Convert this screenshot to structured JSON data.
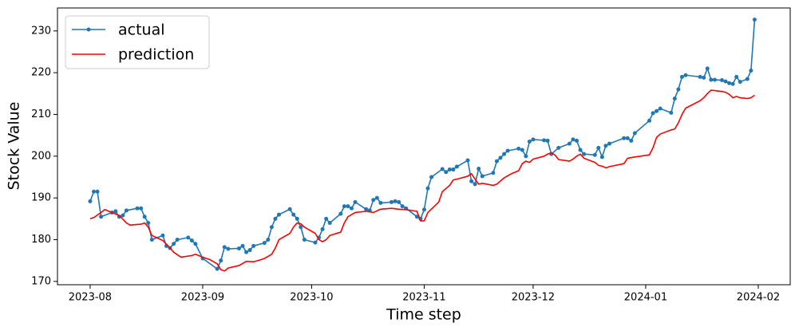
{
  "chart_data": {
    "type": "line",
    "xlabel": "Time step",
    "ylabel": "Stock Value",
    "xlim": [
      -9,
      192.8
    ],
    "ylim": [
      169.2,
      235.5
    ],
    "xticks": [
      {
        "value": 0,
        "label": "2023-08"
      },
      {
        "value": 31,
        "label": "2023-09"
      },
      {
        "value": 61,
        "label": "2023-10"
      },
      {
        "value": 92,
        "label": "2023-11"
      },
      {
        "value": 122,
        "label": "2023-12"
      },
      {
        "value": 153,
        "label": "2024-01"
      },
      {
        "value": 184,
        "label": "2024-02"
      }
    ],
    "yticks": [
      170,
      180,
      190,
      200,
      210,
      220,
      230
    ],
    "legend": "upper left",
    "series": [
      {
        "name": "actual",
        "color": "#1f77b4",
        "markers": true,
        "x": [
          0,
          1,
          2,
          3,
          6,
          7,
          8,
          9,
          10,
          13,
          14,
          15,
          16,
          17,
          20,
          21,
          22,
          23,
          24,
          27,
          28,
          29,
          31,
          35,
          36,
          37,
          38,
          41,
          42,
          43,
          44,
          45,
          48,
          49,
          50,
          51,
          52,
          55,
          56,
          57,
          58,
          59,
          62,
          63,
          64,
          65,
          66,
          69,
          70,
          71,
          72,
          73,
          76,
          77,
          78,
          79,
          80,
          83,
          84,
          85,
          86,
          87,
          90,
          91,
          92,
          93,
          94,
          97,
          98,
          99,
          100,
          101,
          104,
          105,
          106,
          107,
          108,
          111,
          112,
          113,
          114,
          115,
          118,
          119,
          120,
          121,
          122,
          125,
          126,
          127,
          129,
          132,
          133,
          134,
          135,
          136,
          139,
          140,
          141,
          142,
          143,
          147,
          148,
          149,
          150,
          154,
          155,
          156,
          157,
          160,
          161,
          162,
          163,
          164,
          168,
          169,
          170,
          171,
          172,
          174,
          175,
          176,
          177,
          178,
          179,
          181,
          182,
          183
        ],
        "values": [
          189.2,
          191.5,
          191.5,
          185.5,
          186.5,
          186.8,
          185.5,
          185.8,
          187,
          187.5,
          187.5,
          185.5,
          184,
          180,
          181,
          178.5,
          178,
          179,
          180,
          180.5,
          179.8,
          179,
          175.5,
          173,
          175,
          178.2,
          177.8,
          177.9,
          178.5,
          177,
          177.5,
          178.5,
          179.2,
          180,
          183,
          185,
          186,
          187.3,
          186,
          185,
          183,
          180,
          179.3,
          180.5,
          182.5,
          185,
          184,
          186.2,
          188,
          188,
          187.5,
          189,
          187.3,
          187,
          189.5,
          190,
          188.8,
          189,
          189.2,
          189,
          188,
          187.5,
          185.5,
          185,
          187.2,
          192.3,
          195,
          196.9,
          196.2,
          196.8,
          196.8,
          197.5,
          199,
          194,
          193.3,
          197,
          195.2,
          196,
          198.8,
          199.6,
          200.5,
          201.3,
          201.8,
          201.5,
          200,
          203.5,
          204,
          203.8,
          203.7,
          200.5,
          202,
          203,
          204,
          203.7,
          201.5,
          200.5,
          200.3,
          202,
          199.8,
          202.5,
          203,
          204.3,
          204.3,
          203.7,
          205.5,
          208.5,
          210.3,
          210.8,
          211.4,
          210.4,
          213.8,
          216,
          219,
          219.4,
          219,
          218.8,
          221,
          218.3,
          218.3,
          218.2,
          217.9,
          217.5,
          217.3,
          219,
          217.8,
          218.5,
          220.5,
          232.7
        ]
      },
      {
        "name": "prediction",
        "color": "#ff0000",
        "markers": false,
        "x": [
          0,
          1,
          3,
          4,
          6,
          8,
          10,
          11,
          14,
          15,
          16,
          17,
          20,
          22,
          23,
          25,
          28,
          29,
          31,
          33,
          35,
          36,
          37,
          38,
          41,
          43,
          45,
          47,
          48,
          50,
          51,
          52,
          55,
          56,
          57,
          58,
          59,
          62,
          63,
          64,
          65,
          66,
          69,
          70,
          71,
          73,
          76,
          78,
          80,
          83,
          85,
          87,
          90,
          91,
          92,
          93,
          96,
          97,
          99,
          100,
          101,
          104,
          105,
          106,
          107,
          108,
          111,
          112,
          114,
          116,
          118,
          119,
          120,
          121,
          122,
          125,
          126,
          127,
          128,
          129,
          132,
          133,
          134,
          135,
          136,
          139,
          140,
          141,
          142,
          143,
          147,
          148,
          150,
          154,
          155,
          156,
          157,
          160,
          161,
          162,
          163,
          164,
          168,
          169,
          170,
          171,
          174,
          175,
          176,
          177,
          178,
          179,
          181,
          182,
          183
        ],
        "values": [
          185,
          185.3,
          186.5,
          187.2,
          186.5,
          185.8,
          184,
          183.5,
          183.7,
          184,
          183,
          181,
          179.8,
          178,
          177,
          175.8,
          176.2,
          176.5,
          175.8,
          175.2,
          174.2,
          172.8,
          172.5,
          173.2,
          173.8,
          174.8,
          174.7,
          175.2,
          175.5,
          176.5,
          178,
          180,
          181.5,
          183,
          184,
          183.8,
          183,
          181.5,
          180,
          179.5,
          180,
          181,
          181.8,
          184,
          185.5,
          186.5,
          186.8,
          186.5,
          187.3,
          187.5,
          187.3,
          187.2,
          186.8,
          184.5,
          184.5,
          186.5,
          189,
          191.5,
          193,
          194.3,
          194.5,
          195.2,
          195.8,
          194.5,
          193.3,
          193.5,
          193,
          193.3,
          194.8,
          195.8,
          196.5,
          198.2,
          198.8,
          198.5,
          199.3,
          200,
          200.5,
          200.8,
          200.3,
          199.2,
          198.8,
          199.3,
          200,
          200.5,
          199.5,
          198.5,
          197.8,
          197.6,
          197.2,
          197.5,
          198.2,
          199.5,
          199.8,
          200.3,
          202,
          204.5,
          205.3,
          206.3,
          206.5,
          208,
          210,
          211.5,
          213.3,
          214,
          215,
          215.8,
          215.5,
          215.3,
          214.8,
          214,
          214.3,
          214,
          213.8,
          214,
          214.6
        ]
      }
    ]
  }
}
